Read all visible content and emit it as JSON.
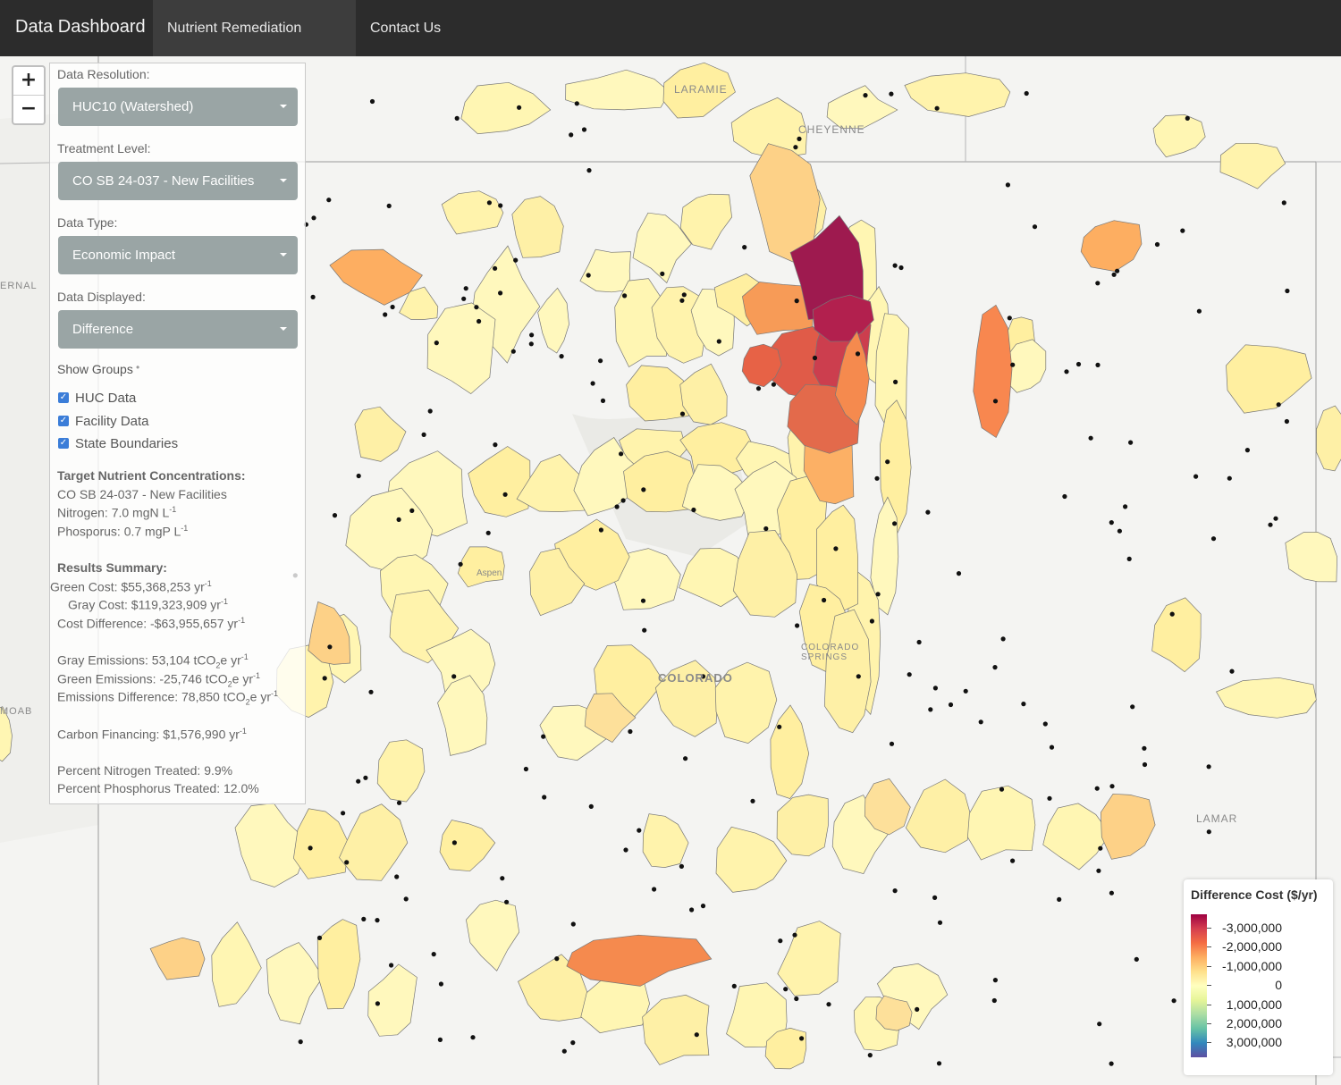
{
  "navbar": {
    "brand": "Data Dashboard",
    "links": [
      {
        "label": "Nutrient Remediation Mapper",
        "active": true
      },
      {
        "label": "Contact Us",
        "active": false
      }
    ]
  },
  "zoom": {
    "in": "+",
    "out": "−"
  },
  "panel": {
    "resolution_label": "Data Resolution:",
    "resolution_value": "HUC10 (Watershed)",
    "treatment_label": "Treatment Level:",
    "treatment_value": "CO SB 24-037 - New Facilities",
    "datatype_label": "Data Type:",
    "datatype_value": "Economic Impact",
    "displayed_label": "Data Displayed:",
    "displayed_value": "Difference",
    "groups_label": "Show Groups",
    "groups": [
      {
        "label": "HUC Data",
        "checked": true
      },
      {
        "label": "Facility Data",
        "checked": true
      },
      {
        "label": "State Boundaries",
        "checked": true
      }
    ],
    "target_title": "Target Nutrient Concentrations:",
    "target_level": "CO SB 24-037 - New Facilities",
    "nitrogen": "Nitrogen: 7.0 mgN L",
    "phosphorus": "Phosporus: 0.7 mgP L",
    "results_title": "Results Summary:",
    "green_cost": "Green Cost: $55,368,253 yr",
    "gray_cost": "Gray Cost: $119,323,909 yr",
    "cost_diff": "Cost Difference: -$63,955,657 yr",
    "gray_emis": "Gray Emissions: 53,104 tCO",
    "green_emis": "Green Emissions: -25,746 tCO",
    "emis_diff": "Emissions Difference: 78,850 tCO",
    "emis_unit": "e yr",
    "carbon": "Carbon Financing: $1,576,990 yr",
    "pct_n": "Percent Nitrogen Treated: 9.9%",
    "pct_p": "Percent Phosphorus Treated: 12.0%",
    "sup_neg1": "-1",
    "sub_2": "2"
  },
  "legend": {
    "title": "Difference Cost ($/yr)",
    "labels": [
      "-3,000,000",
      "-2,000,000",
      "-1,000,000",
      "0",
      "1,000,000",
      "2,000,000",
      "3,000,000"
    ],
    "colors": [
      "#9e0142",
      "#d53e4f",
      "#f46d43",
      "#fdae61",
      "#fee08b",
      "#ffffbf",
      "#e6f598",
      "#abdda4",
      "#66c2a5",
      "#3288bd",
      "#5e4fa2"
    ]
  },
  "map_labels": {
    "laramie": "LARAMIE",
    "cheyenne": "CHEYENNE",
    "colorado": "COLORADO",
    "colorado_springs": "COLORADO SPRINGS",
    "lamar": "LAMAR",
    "aspen": "Aspen",
    "moab": "MOAB",
    "vernal": "ERNAL"
  }
}
